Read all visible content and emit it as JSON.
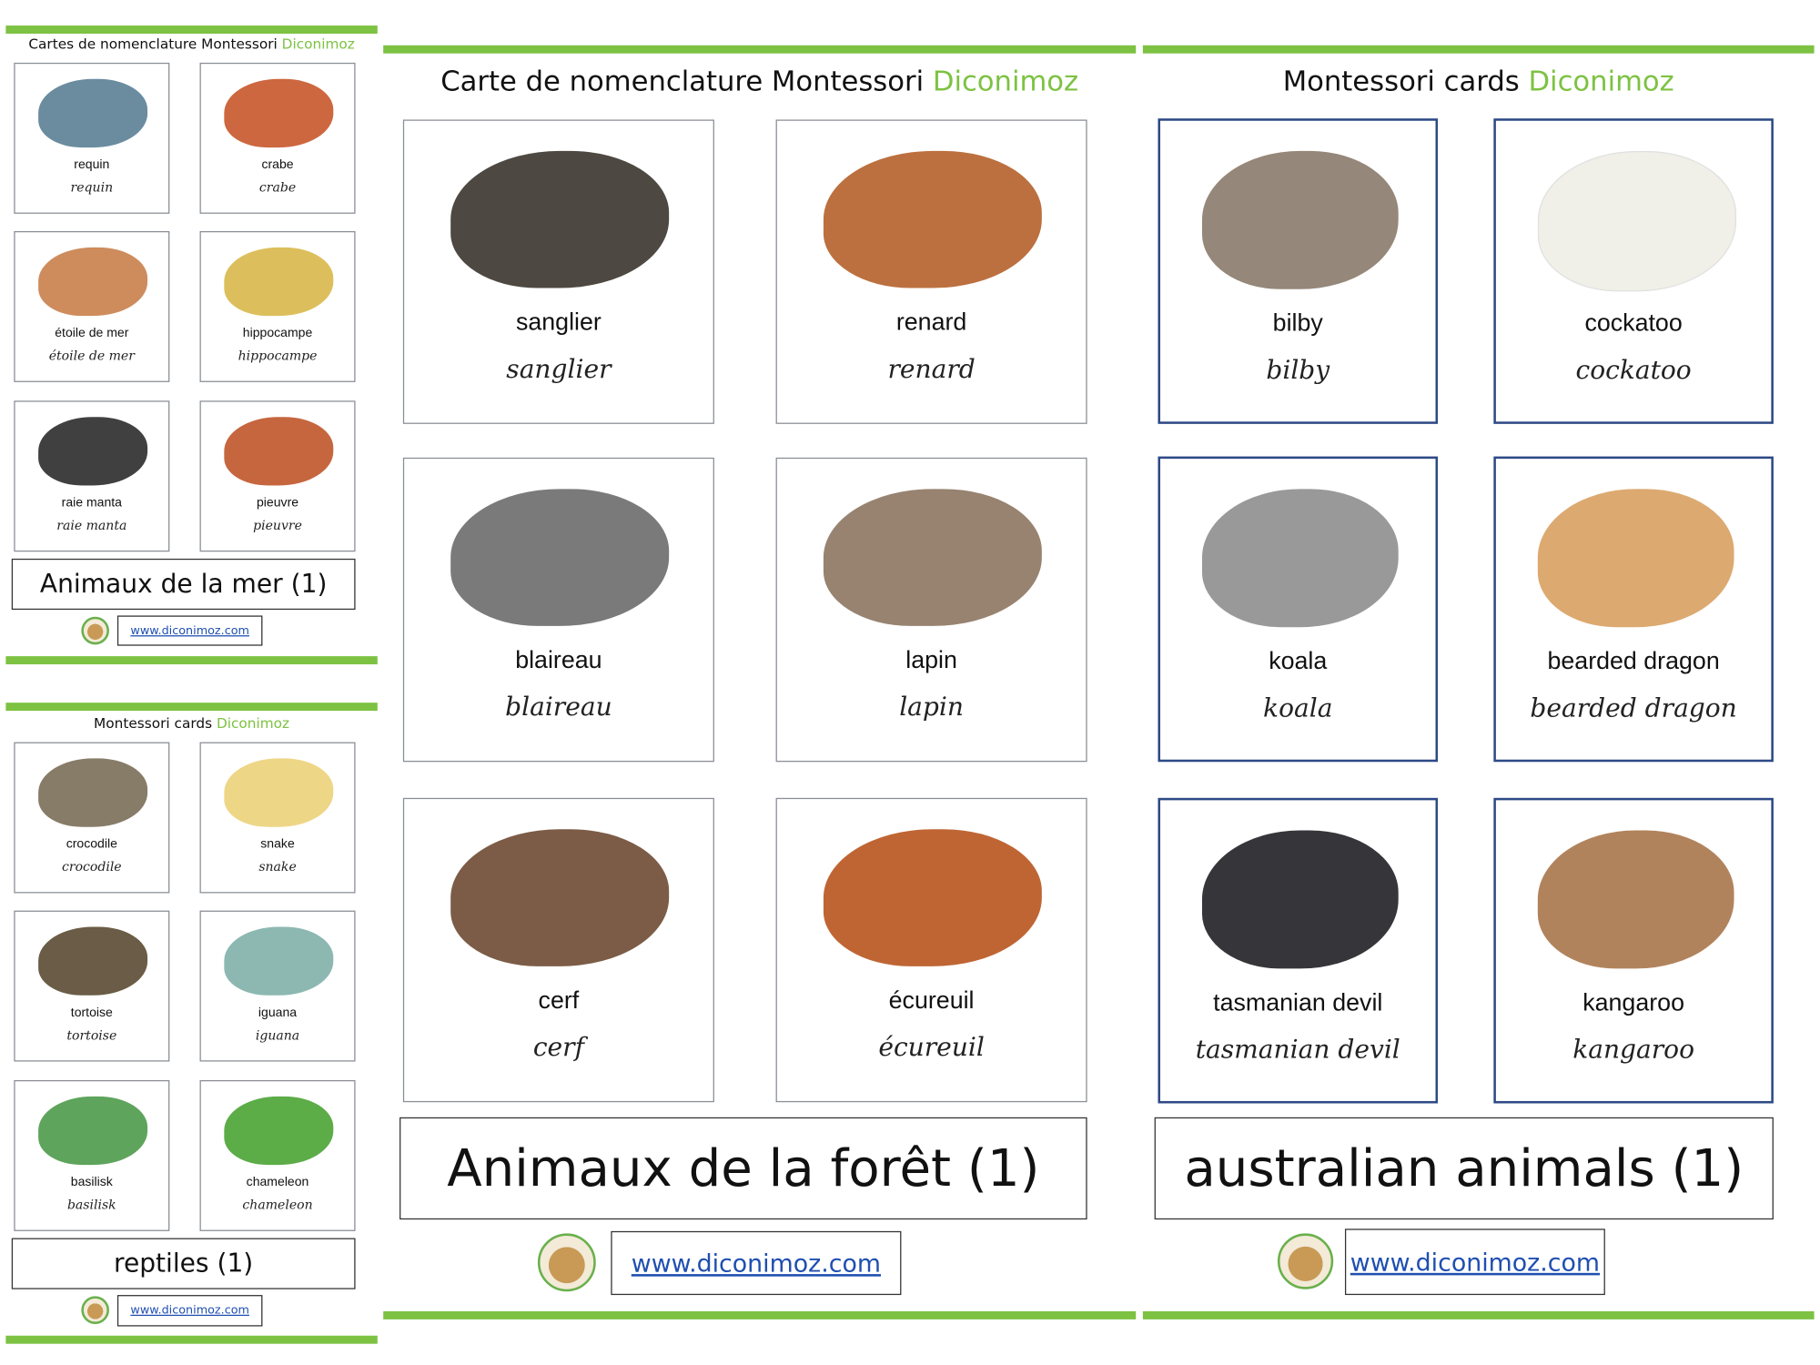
{
  "accent_color": "#7dc242",
  "brand_color": "#7dc242",
  "panels": [
    {
      "title": "Cartes de nomenclature Montessori",
      "brand": "Diconimoz",
      "cards": [
        {
          "word": "requin",
          "cursive": "requin",
          "image_color": "#5b7f95"
        },
        {
          "word": "crabe",
          "cursive": "crabe",
          "image_color": "#c8572a"
        },
        {
          "word": "étoile de mer",
          "cursive": "étoile de mer",
          "image_color": "#c9804a"
        },
        {
          "word": "hippocampe",
          "cursive": "hippocampe",
          "image_color": "#d8b84a"
        },
        {
          "word": "raie manta",
          "cursive": "raie manta",
          "image_color": "#2b2b2b"
        },
        {
          "word": "pieuvre",
          "cursive": "pieuvre",
          "image_color": "#c0552a"
        }
      ],
      "set_title": "Animaux de la mer (1)",
      "url": "www.diconimoz.com"
    },
    {
      "title": "Montessori cards",
      "brand": "Diconimoz",
      "cards": [
        {
          "word": "crocodile",
          "cursive": "crocodile",
          "image_color": "#7a6e58"
        },
        {
          "word": "snake",
          "cursive": "snake",
          "image_color": "#ecd27a"
        },
        {
          "word": "tortoise",
          "cursive": "tortoise",
          "image_color": "#5a4a32"
        },
        {
          "word": "iguana",
          "cursive": "iguana",
          "image_color": "#7fb0a8"
        },
        {
          "word": "basilisk",
          "cursive": "basilisk",
          "image_color": "#4c9a4a"
        },
        {
          "word": "chameleon",
          "cursive": "chameleon",
          "image_color": "#4aa334"
        }
      ],
      "set_title": "reptiles (1)",
      "url": "www.diconimoz.com"
    },
    {
      "title": "Carte de nomenclature Montessori",
      "brand": "Diconimoz",
      "cards": [
        {
          "word": "sanglier",
          "cursive": "sanglier",
          "image_color": "#3a342c"
        },
        {
          "word": "renard",
          "cursive": "renard",
          "image_color": "#b5602a"
        },
        {
          "word": "blaireau",
          "cursive": "blaireau",
          "image_color": "#6b6b6b"
        },
        {
          "word": "lapin",
          "cursive": "lapin",
          "image_color": "#8c7560"
        },
        {
          "word": "cerf",
          "cursive": "cerf",
          "image_color": "#6e4a32"
        },
        {
          "word": "écureuil",
          "cursive": "écureuil",
          "image_color": "#b8541e"
        }
      ],
      "set_title": "Animaux de la forêt (1)",
      "url": "www.diconimoz.com"
    },
    {
      "title": "Montessori cards",
      "brand": "Diconimoz",
      "cards": [
        {
          "word": "bilby",
          "cursive": "bilby",
          "image_color": "#8a7a6a"
        },
        {
          "word": "cockatoo",
          "cursive": "cockatoo",
          "image_color": "#efefe6"
        },
        {
          "word": "koala",
          "cursive": "koala",
          "image_color": "#8e8e8e"
        },
        {
          "word": "bearded dragon",
          "cursive": "bearded dragon",
          "image_color": "#d8a060"
        },
        {
          "word": "tasmanian devil",
          "cursive": "tasmanian devil",
          "image_color": "#1f1f25"
        },
        {
          "word": "kangaroo",
          "cursive": "kangaroo",
          "image_color": "#a8764a"
        }
      ],
      "set_title": "australian animals (1)",
      "url": "www.diconimoz.com"
    }
  ]
}
